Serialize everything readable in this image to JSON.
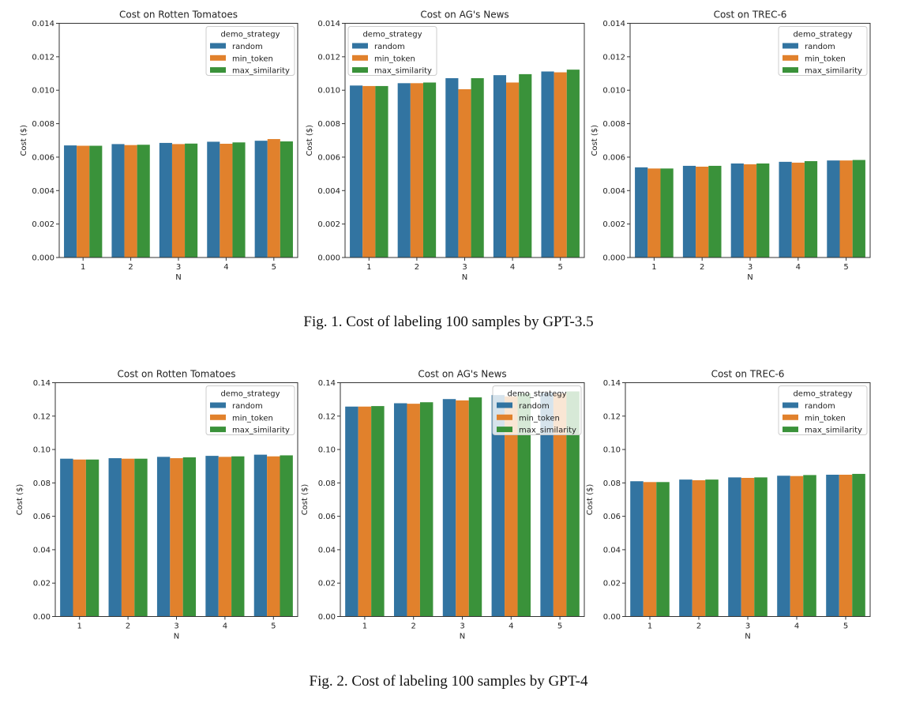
{
  "figures": [
    {
      "caption": "Fig. 1.  Cost of labeling 100 samples by GPT-3.5"
    },
    {
      "caption": "Fig. 2.  Cost of labeling 100 samples by GPT-4"
    }
  ],
  "colors": {
    "random": "#3274a1",
    "min_token": "#e1812c",
    "max_similarity": "#3a923a"
  },
  "chart_data": [
    {
      "type": "bar",
      "figure": 1,
      "title": "Cost on Rotten Tomatoes",
      "xlabel": "N",
      "ylabel": "Cost ($)",
      "categories": [
        "1",
        "2",
        "3",
        "4",
        "5"
      ],
      "ylim": [
        0,
        0.014
      ],
      "yticks": [
        "0.000",
        "0.002",
        "0.004",
        "0.006",
        "0.008",
        "0.010",
        "0.012",
        "0.014"
      ],
      "legend_title": "demo_strategy",
      "legend_position": "top-right",
      "series": [
        {
          "name": "random",
          "values": [
            0.0067,
            0.00678,
            0.00685,
            0.00692,
            0.00698
          ]
        },
        {
          "name": "min_token",
          "values": [
            0.00668,
            0.00672,
            0.00678,
            0.0068,
            0.00708
          ]
        },
        {
          "name": "max_similarity",
          "values": [
            0.00668,
            0.00674,
            0.00681,
            0.00688,
            0.00694
          ]
        }
      ]
    },
    {
      "type": "bar",
      "figure": 1,
      "title": "Cost on AG's News",
      "xlabel": "N",
      "ylabel": "Cost ($)",
      "categories": [
        "1",
        "2",
        "3",
        "4",
        "5"
      ],
      "ylim": [
        0,
        0.014
      ],
      "yticks": [
        "0.000",
        "0.002",
        "0.004",
        "0.006",
        "0.008",
        "0.010",
        "0.012",
        "0.014"
      ],
      "legend_title": "demo_strategy",
      "legend_position": "top-left",
      "series": [
        {
          "name": "random",
          "values": [
            0.01028,
            0.01042,
            0.01072,
            0.0109,
            0.01112
          ]
        },
        {
          "name": "min_token",
          "values": [
            0.01025,
            0.01042,
            0.01006,
            0.01046,
            0.01107
          ]
        },
        {
          "name": "max_similarity",
          "values": [
            0.01025,
            0.01046,
            0.01072,
            0.01096,
            0.01123
          ]
        }
      ]
    },
    {
      "type": "bar",
      "figure": 1,
      "title": "Cost on TREC-6",
      "xlabel": "N",
      "ylabel": "Cost ($)",
      "categories": [
        "1",
        "2",
        "3",
        "4",
        "5"
      ],
      "ylim": [
        0,
        0.014
      ],
      "yticks": [
        "0.000",
        "0.002",
        "0.004",
        "0.006",
        "0.008",
        "0.010",
        "0.012",
        "0.014"
      ],
      "legend_title": "demo_strategy",
      "legend_position": "top-right",
      "series": [
        {
          "name": "random",
          "values": [
            0.00539,
            0.00548,
            0.00562,
            0.00572,
            0.0058
          ]
        },
        {
          "name": "min_token",
          "values": [
            0.00532,
            0.00543,
            0.00557,
            0.00567,
            0.0058
          ]
        },
        {
          "name": "max_similarity",
          "values": [
            0.00532,
            0.00548,
            0.00562,
            0.00576,
            0.00583
          ]
        }
      ]
    },
    {
      "type": "bar",
      "figure": 2,
      "title": "Cost on Rotten Tomatoes",
      "xlabel": "N",
      "ylabel": "Cost ($)",
      "categories": [
        "1",
        "2",
        "3",
        "4",
        "5"
      ],
      "ylim": [
        0,
        0.14
      ],
      "yticks": [
        "0.00",
        "0.02",
        "0.04",
        "0.06",
        "0.08",
        "0.10",
        "0.12",
        "0.14"
      ],
      "legend_title": "demo_strategy",
      "legend_position": "top-right",
      "series": [
        {
          "name": "random",
          "values": [
            0.0945,
            0.0948,
            0.0956,
            0.0962,
            0.0969
          ]
        },
        {
          "name": "min_token",
          "values": [
            0.094,
            0.0945,
            0.0948,
            0.0956,
            0.0959
          ]
        },
        {
          "name": "max_similarity",
          "values": [
            0.094,
            0.0945,
            0.0953,
            0.0959,
            0.0965
          ]
        }
      ]
    },
    {
      "type": "bar",
      "figure": 2,
      "title": "Cost on AG's News",
      "xlabel": "N",
      "ylabel": "Cost ($)",
      "categories": [
        "1",
        "2",
        "3",
        "4",
        "5"
      ],
      "ylim": [
        0,
        0.14
      ],
      "yticks": [
        "0.00",
        "0.02",
        "0.04",
        "0.06",
        "0.08",
        "0.10",
        "0.12",
        "0.14"
      ],
      "legend_title": "demo_strategy",
      "legend_position": "top-right",
      "series": [
        {
          "name": "random",
          "values": [
            0.1257,
            0.1277,
            0.1302,
            0.1326,
            0.134
          ]
        },
        {
          "name": "min_token",
          "values": [
            0.1257,
            0.1274,
            0.1294,
            0.1318,
            0.1335
          ]
        },
        {
          "name": "max_similarity",
          "values": [
            0.126,
            0.1283,
            0.1312,
            0.1336,
            0.1348
          ]
        }
      ]
    },
    {
      "type": "bar",
      "figure": 2,
      "title": "Cost on TREC-6",
      "xlabel": "N",
      "ylabel": "Cost ($)",
      "categories": [
        "1",
        "2",
        "3",
        "4",
        "5"
      ],
      "ylim": [
        0,
        0.14
      ],
      "yticks": [
        "0.00",
        "0.02",
        "0.04",
        "0.06",
        "0.08",
        "0.10",
        "0.12",
        "0.14"
      ],
      "legend_title": "demo_strategy",
      "legend_position": "top-right",
      "series": [
        {
          "name": "random",
          "values": [
            0.081,
            0.082,
            0.0833,
            0.0843,
            0.0849
          ]
        },
        {
          "name": "min_token",
          "values": [
            0.0805,
            0.0816,
            0.083,
            0.0841,
            0.0849
          ]
        },
        {
          "name": "max_similarity",
          "values": [
            0.0805,
            0.082,
            0.0833,
            0.0847,
            0.0854
          ]
        }
      ]
    }
  ]
}
